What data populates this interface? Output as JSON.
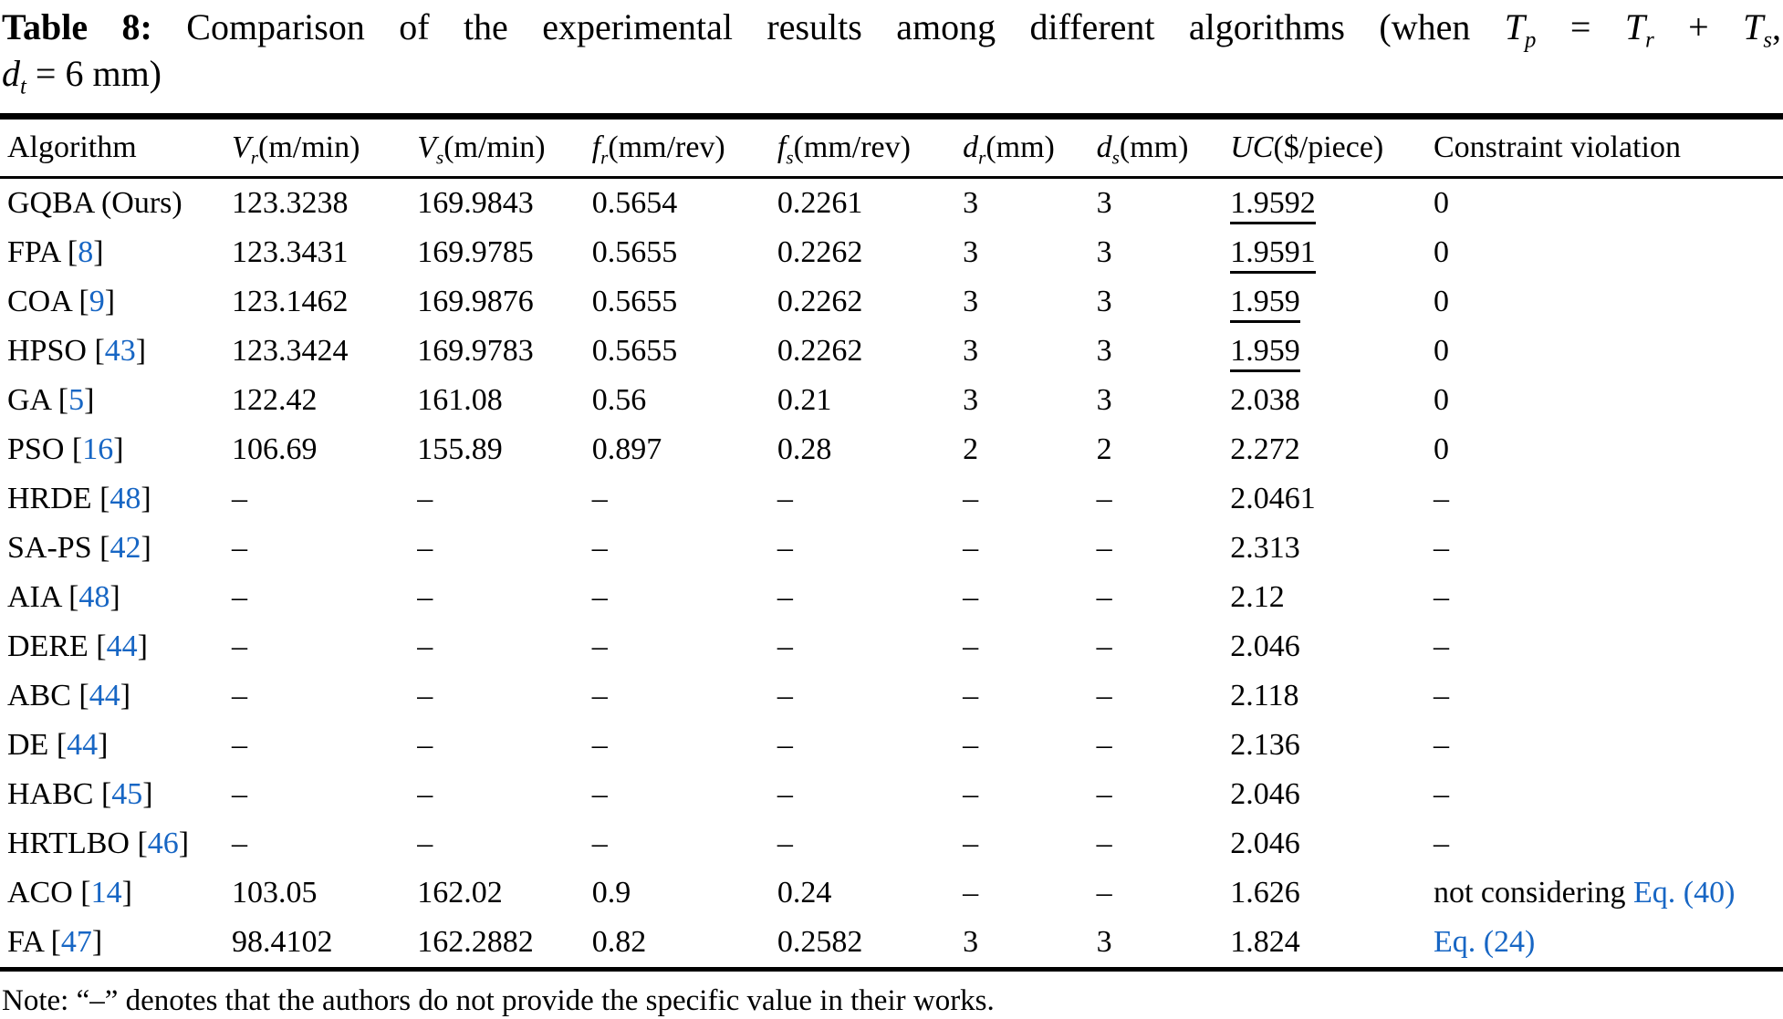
{
  "colors": {
    "reference_blue": "#1766C4",
    "text_black": "#000000",
    "background": "#ffffff"
  },
  "title": {
    "lines": [
      [
        {
          "b": "Table 8:"
        },
        {
          "p": " Comparison of the experimental results among different algorithms (when "
        },
        {
          "m": "T",
          "s": "p"
        },
        {
          "p": " = "
        },
        {
          "m": "T",
          "s": "r"
        },
        {
          "p": " + "
        },
        {
          "m": "T",
          "s": "s"
        },
        {
          "p": ","
        }
      ],
      [
        {
          "m": "d",
          "s": "t"
        },
        {
          "p": " = 6 mm)"
        }
      ]
    ]
  },
  "table": {
    "columns": [
      {
        "key": "algorithm",
        "label": "Algorithm"
      },
      {
        "key": "vr",
        "sym": "V",
        "sub": "r",
        "unit": "(m/min)"
      },
      {
        "key": "vs",
        "sym": "V",
        "sub": "s",
        "unit": "(m/min)"
      },
      {
        "key": "fr",
        "sym": "f",
        "sub": "r",
        "unit": "(mm/rev)"
      },
      {
        "key": "fs",
        "sym": "f",
        "sub": "s",
        "unit": "(mm/rev)"
      },
      {
        "key": "dr",
        "sym": "d",
        "sub": "r",
        "unit": "(mm)"
      },
      {
        "key": "ds",
        "sym": "d",
        "sub": "s",
        "unit": "(mm)"
      },
      {
        "key": "uc",
        "sym": "UC",
        "sub": "",
        "unit": "($/piece)"
      },
      {
        "key": "constraint",
        "label": "Constraint violation"
      }
    ],
    "rows": [
      {
        "algorithm": "GQBA (Ours)",
        "ref": null,
        "vr": "123.3238",
        "vs": "169.9843",
        "fr": "0.5654",
        "fs": "0.2261",
        "dr": "3",
        "ds": "3",
        "uc": "1.9592",
        "uc_underline": true,
        "constraint": "0",
        "constraint_link": null
      },
      {
        "algorithm": "FPA",
        "ref": "8",
        "vr": "123.3431",
        "vs": "169.9785",
        "fr": "0.5655",
        "fs": "0.2262",
        "dr": "3",
        "ds": "3",
        "uc": "1.9591",
        "uc_underline": true,
        "constraint": "0",
        "constraint_link": null
      },
      {
        "algorithm": "COA",
        "ref": "9",
        "vr": "123.1462",
        "vs": "169.9876",
        "fr": "0.5655",
        "fs": "0.2262",
        "dr": "3",
        "ds": "3",
        "uc": "1.959",
        "uc_underline": true,
        "constraint": "0",
        "constraint_link": null
      },
      {
        "algorithm": "HPSO",
        "ref": "43",
        "vr": "123.3424",
        "vs": "169.9783",
        "fr": "0.5655",
        "fs": "0.2262",
        "dr": "3",
        "ds": "3",
        "uc": "1.959",
        "uc_underline": true,
        "constraint": "0",
        "constraint_link": null
      },
      {
        "algorithm": "GA",
        "ref": "5",
        "vr": "122.42",
        "vs": "161.08",
        "fr": "0.56",
        "fs": "0.21",
        "dr": "3",
        "ds": "3",
        "uc": "2.038",
        "uc_underline": false,
        "constraint": "0",
        "constraint_link": null
      },
      {
        "algorithm": "PSO",
        "ref": "16",
        "vr": "106.69",
        "vs": "155.89",
        "fr": "0.897",
        "fs": "0.28",
        "dr": "2",
        "ds": "2",
        "uc": "2.272",
        "uc_underline": false,
        "constraint": "0",
        "constraint_link": null
      },
      {
        "algorithm": "HRDE",
        "ref": "48",
        "vr": "–",
        "vs": "–",
        "fr": "–",
        "fs": "–",
        "dr": "–",
        "ds": "–",
        "uc": "2.0461",
        "uc_underline": false,
        "constraint": "–",
        "constraint_link": null
      },
      {
        "algorithm": "SA-PS",
        "ref": "42",
        "vr": "–",
        "vs": "–",
        "fr": "–",
        "fs": "–",
        "dr": "–",
        "ds": "–",
        "uc": "2.313",
        "uc_underline": false,
        "constraint": "–",
        "constraint_link": null
      },
      {
        "algorithm": "AIA",
        "ref": "48",
        "vr": "–",
        "vs": "–",
        "fr": "–",
        "fs": "–",
        "dr": "–",
        "ds": "–",
        "uc": "2.12",
        "uc_underline": false,
        "constraint": "–",
        "constraint_link": null
      },
      {
        "algorithm": "DERE",
        "ref": "44",
        "vr": "–",
        "vs": "–",
        "fr": "–",
        "fs": "–",
        "dr": "–",
        "ds": "–",
        "uc": "2.046",
        "uc_underline": false,
        "constraint": "–",
        "constraint_link": null
      },
      {
        "algorithm": "ABC",
        "ref": "44",
        "vr": "–",
        "vs": "–",
        "fr": "–",
        "fs": "–",
        "dr": "–",
        "ds": "–",
        "uc": "2.118",
        "uc_underline": false,
        "constraint": "–",
        "constraint_link": null
      },
      {
        "algorithm": "DE",
        "ref": "44",
        "vr": "–",
        "vs": "–",
        "fr": "–",
        "fs": "–",
        "dr": "–",
        "ds": "–",
        "uc": "2.136",
        "uc_underline": false,
        "constraint": "–",
        "constraint_link": null
      },
      {
        "algorithm": "HABC",
        "ref": "45",
        "vr": "–",
        "vs": "–",
        "fr": "–",
        "fs": "–",
        "dr": "–",
        "ds": "–",
        "uc": "2.046",
        "uc_underline": false,
        "constraint": "–",
        "constraint_link": null
      },
      {
        "algorithm": "HRTLBO",
        "ref": "46",
        "vr": "–",
        "vs": "–",
        "fr": "–",
        "fs": "–",
        "dr": "–",
        "ds": "–",
        "uc": "2.046",
        "uc_underline": false,
        "constraint": "–",
        "constraint_link": null
      },
      {
        "algorithm": "ACO",
        "ref": "14",
        "vr": "103.05",
        "vs": "162.02",
        "fr": "0.9",
        "fs": "0.24",
        "dr": "–",
        "ds": "–",
        "uc": "1.626",
        "uc_underline": false,
        "constraint": "not considering ",
        "constraint_link": "Eq. (40)"
      },
      {
        "algorithm": "FA",
        "ref": "47",
        "vr": "98.4102",
        "vs": "162.2882",
        "fr": "0.82",
        "fs": "0.2582",
        "dr": "3",
        "ds": "3",
        "uc": "1.824",
        "uc_underline": false,
        "constraint": "",
        "constraint_link": "Eq. (24)"
      }
    ]
  },
  "note": "Note: “–” denotes that the authors do not provide the specific value in their works."
}
